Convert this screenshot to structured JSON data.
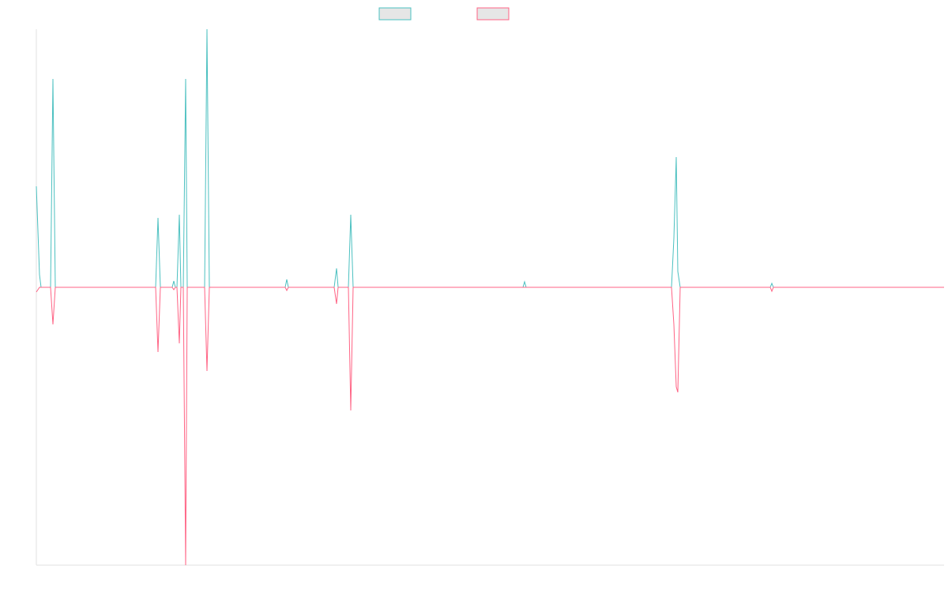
{
  "chart_data": {
    "type": "line",
    "x": [
      0,
      4,
      6,
      18,
      21,
      24,
      151,
      154,
      157,
      172,
      174,
      176,
      178,
      181,
      183,
      186,
      189,
      191,
      213,
      216,
      219,
      315,
      317,
      319,
      377,
      380,
      382,
      395,
      398,
      401,
      616,
      618,
      620,
      804,
      807,
      810,
      812,
      815,
      929,
      931,
      933,
      1149
    ],
    "xlim": [
      0,
      1149
    ],
    "ylim": [
      -352,
      327
    ],
    "series": [
      {
        "color": "#4bc0c0",
        "values": [
          128,
          16,
          0,
          0,
          264,
          0,
          0,
          88,
          0,
          0,
          8,
          0,
          0,
          92,
          0,
          0,
          264,
          0,
          0,
          327,
          0,
          0,
          10,
          0,
          0,
          24,
          0,
          0,
          92,
          0,
          0,
          7,
          0,
          0,
          62,
          165,
          20,
          0,
          0,
          5,
          0,
          0
        ]
      },
      {
        "color": "#ff6384",
        "values": [
          -6,
          0,
          0,
          0,
          -47,
          0,
          0,
          -82,
          0,
          0,
          -3,
          0,
          0,
          -71,
          0,
          0,
          -352,
          0,
          0,
          -106,
          0,
          0,
          -4,
          0,
          0,
          -21,
          0,
          0,
          -156,
          0,
          0,
          0,
          0,
          0,
          -47,
          -126,
          -133,
          0,
          0,
          -5,
          0,
          0
        ]
      }
    ]
  }
}
